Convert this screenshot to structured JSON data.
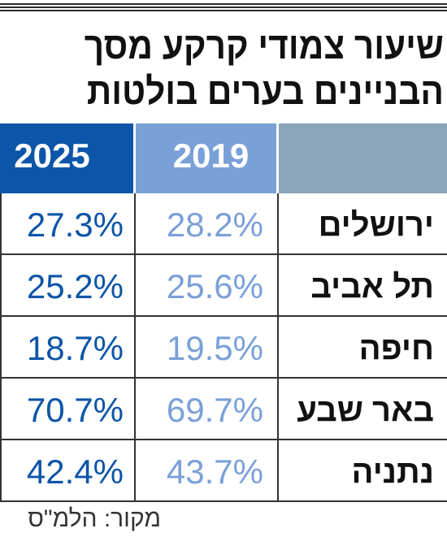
{
  "title_line1": "שיעור צמודי קרקע מסך",
  "title_line2": "הבניינים בערים בולטות",
  "chart_data": {
    "type": "table",
    "columns": [
      "2025",
      "2019"
    ],
    "rows": [
      {
        "city": "ירושלים",
        "2019": "28.2%",
        "2025": "27.3%"
      },
      {
        "city": "תל אביב",
        "2019": "25.6%",
        "2025": "25.2%"
      },
      {
        "city": "חיפה",
        "2019": "19.5%",
        "2025": "18.7%"
      },
      {
        "city": "באר שבע",
        "2019": "69.7%",
        "2025": "70.7%"
      },
      {
        "city": "נתניה",
        "2019": "43.7%",
        "2025": "42.4%"
      }
    ],
    "colors": {
      "2025": "#0d55a8",
      "2019": "#7aa0d8",
      "category_header": "#8aa4b9"
    }
  },
  "source": "מקור: הלמ\"ס"
}
